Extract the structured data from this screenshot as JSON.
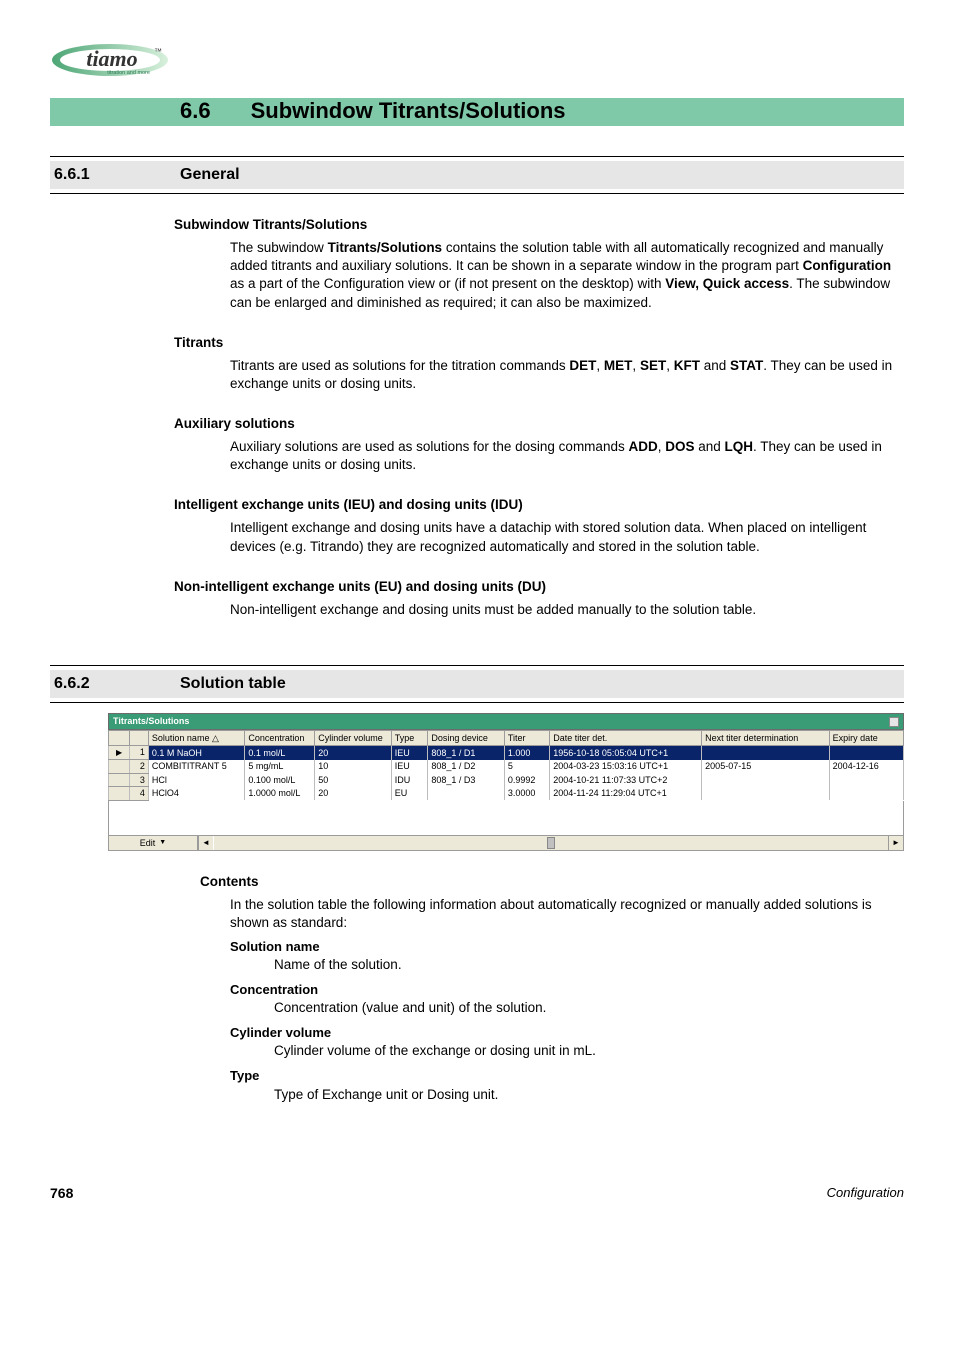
{
  "logo": {
    "brand": "tiamo",
    "tagline": "titration and more",
    "tm": "™",
    "oval_gradient_start": "#4da676",
    "oval_gradient_end": "#c7e7cb"
  },
  "section": {
    "number": "6.6",
    "title": "Subwindow Titrants/Solutions"
  },
  "sub1": {
    "number": "6.6.1",
    "title": "General"
  },
  "para1": {
    "heading": "Subwindow Titrants/Solutions",
    "t1": "The subwindow ",
    "b1": "Titrants/Solutions",
    "t2": " contains the solution table with all automatically recognized and manually added titrants and auxiliary solutions. It can be shown in a separate window in the program part ",
    "b2": "Configuration",
    "t3": " as a part of the Configuration view or (if not present on the desktop) with ",
    "b3": "View, Quick access",
    "t4": ". The subwindow can be enlarged and diminished as required; it can also be maximized."
  },
  "para2": {
    "heading": "Titrants",
    "t1": "Titrants are used as solutions for the titration commands ",
    "b1": "DET",
    "b2": "MET",
    "b3": "SET",
    "b4": "KFT",
    "t2": " and ",
    "b5": "STAT",
    "t3": ". They can be used in exchange units or dosing units."
  },
  "para3": {
    "heading": "Auxiliary solutions",
    "t1": "Auxiliary solutions are used as solutions for the dosing commands ",
    "b1": "ADD",
    "b2": "DOS",
    "t2": " and ",
    "b3": "LQH",
    "t3": ". They can be used in exchange units or dosing units."
  },
  "para4": {
    "heading": "Intelligent exchange units (IEU) and dosing units (IDU)",
    "text": "Intelligent exchange and dosing units have a datachip with stored solution data. When placed on intelligent devices (e.g. Titrando) they are recognized automatically and stored in the solution table."
  },
  "para5": {
    "heading": "Non-intelligent exchange units (EU) and dosing units (DU)",
    "text": "Non-intelligent exchange and dosing units must be added manually to the solution table."
  },
  "sub2": {
    "number": "6.6.2",
    "title": "Solution table"
  },
  "table": {
    "title": "Titrants/Solutions",
    "edit_label": "Edit",
    "columns": [
      "Solution name",
      "Concentration",
      "Cylinder volume",
      "Type",
      "Dosing device",
      "Titer",
      "Date titer det.",
      "Next titer determination",
      "Expiry date"
    ],
    "col_widths": [
      "80",
      "56",
      "62",
      "26",
      "62",
      "34",
      "130",
      "108",
      "60"
    ],
    "sort_col": 0,
    "rows": [
      {
        "n": "1",
        "selected": true,
        "cells": [
          "0.1 M NaOH",
          "0.1 mol/L",
          "20",
          "IEU",
          "808_1 / D1",
          "1.000",
          "1956-10-18 05:05:04 UTC+1",
          "",
          ""
        ]
      },
      {
        "n": "2",
        "selected": false,
        "cells": [
          "COMBITITRANT 5",
          "5 mg/mL",
          "10",
          "IEU",
          "808_1 / D2",
          "5",
          "2004-03-23 15:03:16 UTC+1",
          "2005-07-15",
          "2004-12-16"
        ]
      },
      {
        "n": "3",
        "selected": false,
        "cells": [
          "HCl",
          "0.100 mol/L",
          "50",
          "IDU",
          "808_1 / D3",
          "0.9992",
          "2004-10-21 11:07:33 UTC+2",
          "",
          ""
        ]
      },
      {
        "n": "4",
        "selected": false,
        "cells": [
          "HClO4",
          "1.0000 mol/L",
          "20",
          "EU",
          "",
          "3.0000",
          "2004-11-24 11:29:04 UTC+1",
          "",
          ""
        ]
      }
    ]
  },
  "contents": {
    "heading": "Contents",
    "intro": "In the solution table the following information about automatically recognized or manually added solutions is shown as standard:",
    "defs": [
      {
        "term": "Solution name",
        "desc": "Name of the solution."
      },
      {
        "term": "Concentration",
        "desc": "Concentration (value and unit) of the solution."
      },
      {
        "term": "Cylinder volume",
        "desc": "Cylinder volume of the exchange or dosing unit in mL."
      },
      {
        "term": "Type",
        "desc": "Type of Exchange unit or Dosing unit."
      }
    ]
  },
  "footer": {
    "page": "768",
    "label": "Configuration"
  }
}
